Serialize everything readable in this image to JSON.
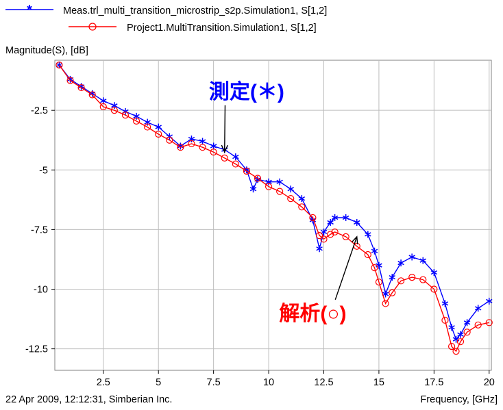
{
  "chart_data": {
    "type": "line",
    "xlabel": "Frequency, [GHz]",
    "ylabel": "Magnitude(S), [dB]",
    "xlim": [
      0.3,
      20.1
    ],
    "ylim": [
      -13.4,
      -0.4
    ],
    "x_ticks": [
      2.5,
      5,
      7.5,
      10,
      12.5,
      15,
      17.5,
      20
    ],
    "x_tick_labels": [
      "2.5",
      "5",
      "7.5",
      "10",
      "12.5",
      "15",
      "17.5",
      "20"
    ],
    "y_ticks": [
      -2.5,
      -5,
      -7.5,
      -10,
      -12.5
    ],
    "y_tick_labels": [
      "-2.5",
      "-5",
      "-7.5",
      "-10",
      "-12.5"
    ],
    "grid": true,
    "legend_position": "top-left",
    "footer_left": "22 Apr 2009, 12:12:31, Simberian Inc.",
    "series": [
      {
        "name": "Meas.trl_multi_transition_microstrip_s2p.Simulation1, S[1,2]",
        "color": "#0000ff",
        "marker": "asterisk",
        "x": [
          0.5,
          1.0,
          1.5,
          2.0,
          2.5,
          3.0,
          3.5,
          4.0,
          4.5,
          5.0,
          5.5,
          6.0,
          6.5,
          7.0,
          7.5,
          8.0,
          8.5,
          9.0,
          9.3,
          9.5,
          10.0,
          10.5,
          11.0,
          11.5,
          12.0,
          12.3,
          12.5,
          12.8,
          13.0,
          13.5,
          14.0,
          14.5,
          14.8,
          15.0,
          15.3,
          15.6,
          16.0,
          16.5,
          17.0,
          17.5,
          18.0,
          18.3,
          18.5,
          18.7,
          19.0,
          19.5,
          20.0
        ],
        "y": [
          -0.6,
          -1.2,
          -1.5,
          -1.8,
          -2.1,
          -2.3,
          -2.55,
          -2.75,
          -3.0,
          -3.2,
          -3.6,
          -4.0,
          -3.7,
          -3.8,
          -4.0,
          -4.15,
          -4.45,
          -5.0,
          -5.8,
          -5.4,
          -5.5,
          -5.5,
          -5.8,
          -6.2,
          -7.1,
          -8.3,
          -7.6,
          -7.2,
          -7.0,
          -7.0,
          -7.2,
          -7.7,
          -8.4,
          -9.0,
          -10.2,
          -9.5,
          -8.9,
          -8.65,
          -8.8,
          -9.3,
          -10.6,
          -11.6,
          -12.1,
          -11.9,
          -11.4,
          -10.8,
          -10.5
        ]
      },
      {
        "name": "Project1.MultiTransition.Simulation1, S[1,2]",
        "color": "#ff0000",
        "marker": "circle",
        "x": [
          0.5,
          1.0,
          1.5,
          2.0,
          2.5,
          3.0,
          3.5,
          4.0,
          4.5,
          5.0,
          5.5,
          6.0,
          6.5,
          7.0,
          7.5,
          8.0,
          8.5,
          9.0,
          9.5,
          10.0,
          10.5,
          11.0,
          11.5,
          12.0,
          12.3,
          12.5,
          12.8,
          13.0,
          13.5,
          14.0,
          14.5,
          14.8,
          15.0,
          15.3,
          15.6,
          16.0,
          16.5,
          17.0,
          17.5,
          18.0,
          18.3,
          18.5,
          18.7,
          19.0,
          19.5,
          20.0
        ],
        "y": [
          -0.6,
          -1.25,
          -1.55,
          -1.85,
          -2.35,
          -2.5,
          -2.7,
          -2.95,
          -3.2,
          -3.5,
          -3.75,
          -4.05,
          -3.9,
          -4.05,
          -4.25,
          -4.5,
          -4.75,
          -5.05,
          -5.35,
          -5.7,
          -5.9,
          -6.2,
          -6.55,
          -7.0,
          -7.75,
          -7.9,
          -7.7,
          -7.6,
          -7.8,
          -8.2,
          -8.55,
          -9.1,
          -9.7,
          -10.6,
          -10.15,
          -9.65,
          -9.5,
          -9.6,
          -10.0,
          -11.3,
          -12.4,
          -12.6,
          -12.2,
          -11.8,
          -11.5,
          -11.4
        ]
      }
    ],
    "annotations": [
      {
        "text": "測定(＊)",
        "color": "#0000ff",
        "x": 9.0,
        "y": -2.0,
        "arrow_to": [
          8.0,
          -4.25
        ]
      },
      {
        "text": "解析(○)",
        "color": "#ff0000",
        "x": 12.0,
        "y": -11.3,
        "arrow_to": [
          14.0,
          -7.8
        ]
      }
    ]
  }
}
